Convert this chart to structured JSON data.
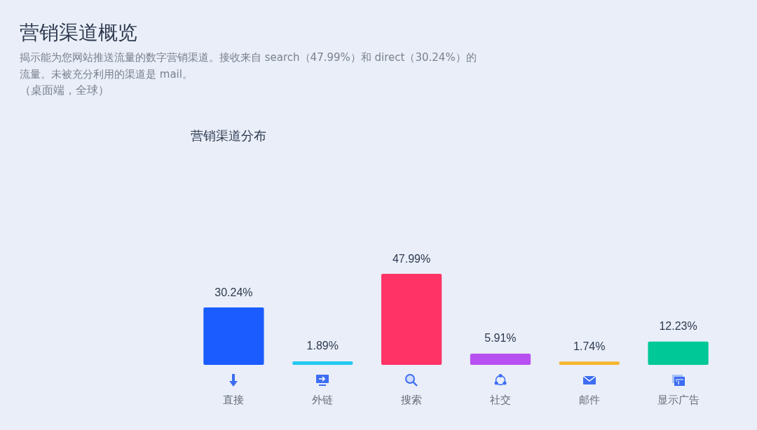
{
  "chart_data": {
    "type": "bar",
    "title": "营销渠道概览",
    "subtitle": "揭示能为您网站推送流量的数字营销渠道。接收来自 search（47.99%）和 direct（30.24%）的流量。未被充分利用的渠道是 mail。",
    "annotations": [
      "（桌面端，全球）",
      "营销渠道分布"
    ],
    "categories": [
      "直接",
      "外链",
      "搜索",
      "社交",
      "邮件",
      "显示广告"
    ],
    "values": [
      30.24,
      1.89,
      47.99,
      5.91,
      1.74,
      12.23
    ],
    "value_labels": [
      "30.24%",
      "1.89%",
      "47.99%",
      "5.91%",
      "1.74%",
      "12.23%"
    ],
    "colors": [
      "#1a5cff",
      "#23c9f0",
      "#ff3366",
      "#b84ff0",
      "#f5b731",
      "#00c896"
    ]
  }
}
